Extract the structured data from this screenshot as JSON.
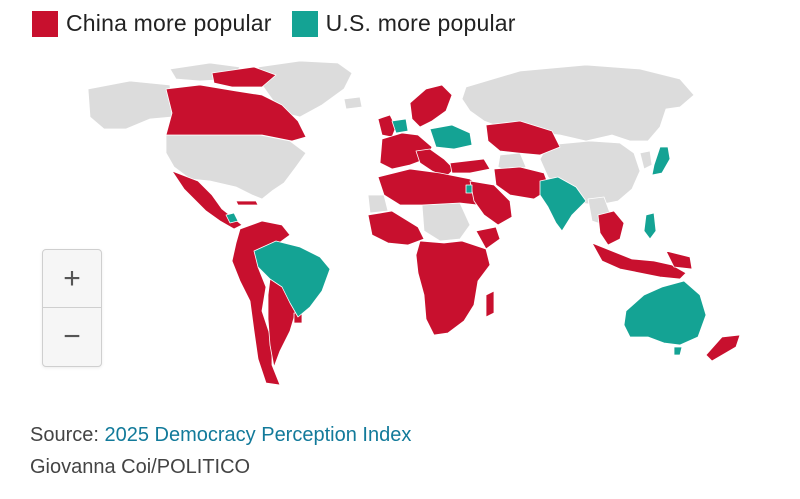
{
  "legend": {
    "china_label": "China more popular",
    "us_label": "U.S. more popular",
    "china_color": "#c8102e",
    "us_color": "#14a394",
    "neutral_color": "#dcdcdc"
  },
  "zoom": {
    "in_label": "+",
    "out_label": "−"
  },
  "source": {
    "prefix": "Source: ",
    "link_text": "2025 Democracy Perception Index"
  },
  "credit": "Giovanna Coi/POLITICO",
  "map_regions": {
    "neutral": [
      "Greenland",
      "United States",
      "Russia",
      "Mongolia",
      "Western Sahara",
      "Sudan",
      "Myanmar",
      "Korea",
      "Paraguay"
    ],
    "china_more_popular": [
      "Canada",
      "Mexico",
      "Central America",
      "Cuba",
      "Colombia",
      "Venezuela",
      "Peru",
      "Bolivia",
      "Chile",
      "Argentina",
      "Uruguay",
      "Norway",
      "Sweden",
      "Finland",
      "Ireland",
      "United Kingdom",
      "France",
      "Spain",
      "Portugal",
      "Germany",
      "Italy",
      "Greece",
      "Turkey",
      "Kazakhstan",
      "Iran",
      "Egypt",
      "Libya",
      "Algeria",
      "Morocco",
      "Saudi Arabia",
      "Pakistan",
      "Sub-Saharan Africa",
      "South Africa",
      "Madagascar",
      "Thailand",
      "Vietnam",
      "Indonesia",
      "Malaysia",
      "Papua New Guinea",
      "New Zealand"
    ],
    "us_more_popular": [
      "Brazil",
      "India",
      "Australia",
      "Japan",
      "Philippines",
      "Poland",
      "Czechia",
      "Ukraine",
      "Israel"
    ]
  }
}
